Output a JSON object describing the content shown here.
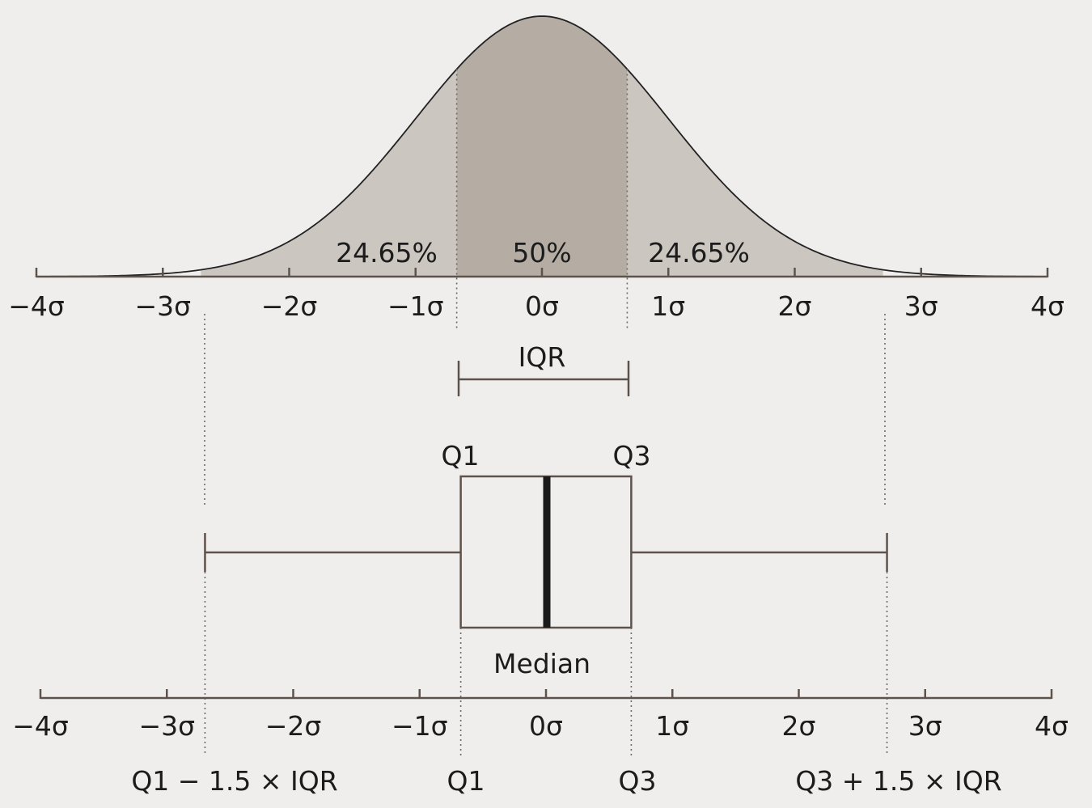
{
  "colors": {
    "background": "#efeeec",
    "tail_fill": "#cbc6c0",
    "center_fill": "#b5ada4",
    "curve": "#222222",
    "axis": "#5e524c",
    "median": "#1a1a1a"
  },
  "distribution": {
    "type": "normal",
    "mean": 0,
    "sd": 1,
    "x_range": [
      -4,
      4
    ],
    "quartile_sigma": 0.6745,
    "whisker_sigma": 2.698,
    "regions": [
      {
        "label": "24.65%",
        "from": -2.698,
        "to": -0.6745
      },
      {
        "label": "50%",
        "from": -0.6745,
        "to": 0.6745
      },
      {
        "label": "24.65%",
        "from": 0.6745,
        "to": 2.698
      }
    ]
  },
  "axis_ticks": [
    {
      "value": -4,
      "label": "−4σ"
    },
    {
      "value": -3,
      "label": "−3σ"
    },
    {
      "value": -2,
      "label": "−2σ"
    },
    {
      "value": -1,
      "label": "−1σ"
    },
    {
      "value": 0,
      "label": "0σ"
    },
    {
      "value": 1,
      "label": "1σ"
    },
    {
      "value": 2,
      "label": "2σ"
    },
    {
      "value": 3,
      "label": "3σ"
    },
    {
      "value": 4,
      "label": "4σ"
    }
  ],
  "iqr_label": "IQR",
  "box": {
    "q1_label": "Q1",
    "q3_label": "Q3",
    "median_label": "Median"
  },
  "bottom_labels": {
    "lower_fence": "Q1 − 1.5 × IQR",
    "q1": "Q1",
    "q3": "Q3",
    "upper_fence": "Q3 + 1.5 × IQR"
  }
}
